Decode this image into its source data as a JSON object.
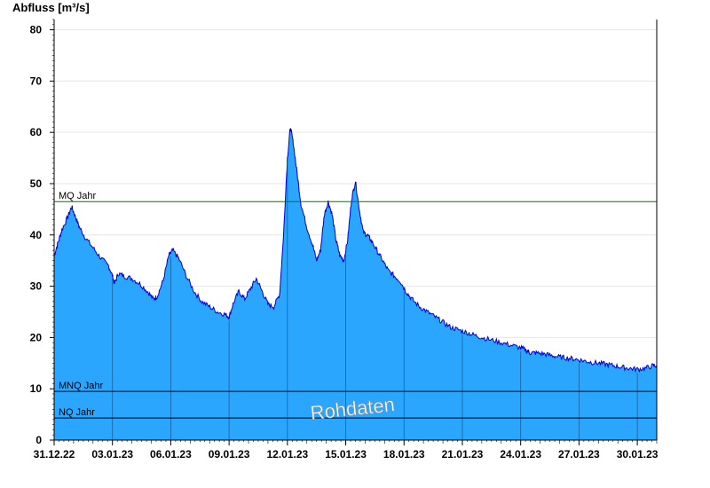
{
  "chart_data": {
    "type": "area",
    "ylabel": "Abfluss [m³/s]",
    "ylim": [
      0,
      82
    ],
    "yticks": [
      0,
      10,
      20,
      30,
      40,
      50,
      60,
      70,
      80
    ],
    "xlim": [
      0,
      31
    ],
    "xticks": [
      {
        "x": 0,
        "label": "31.12.22"
      },
      {
        "x": 3,
        "label": "03.01.23"
      },
      {
        "x": 6,
        "label": "06.01.23"
      },
      {
        "x": 9,
        "label": "09.01.23"
      },
      {
        "x": 12,
        "label": "12.01.23"
      },
      {
        "x": 15,
        "label": "15.01.23"
      },
      {
        "x": 18,
        "label": "18.01.23"
      },
      {
        "x": 21,
        "label": "21.01.23"
      },
      {
        "x": 24,
        "label": "24.01.23"
      },
      {
        "x": 27,
        "label": "27.01.23"
      },
      {
        "x": 30,
        "label": "30.01.23"
      }
    ],
    "series": [
      {
        "x": [
          0,
          0.2,
          0.4,
          0.7,
          0.9,
          1.1,
          1.3,
          1.6,
          2.0,
          2.4,
          2.8,
          3.0,
          3.1,
          3.3,
          3.6,
          4.0,
          4.4,
          4.8,
          5.1,
          5.3,
          5.6,
          5.9,
          6.1,
          6.4,
          6.8,
          7.2,
          7.6,
          8.0,
          8.4,
          8.8,
          9.0,
          9.2,
          9.5,
          9.8,
          10.1,
          10.4,
          10.7,
          11.0,
          11.3,
          11.6,
          11.8,
          12.0,
          12.15,
          12.3,
          12.5,
          12.7,
          13.0,
          13.3,
          13.5,
          13.7,
          13.9,
          14.1,
          14.3,
          14.5,
          14.7,
          14.9,
          15.1,
          15.3,
          15.5,
          15.7,
          15.9,
          16.1,
          16.3,
          16.6,
          16.9,
          17.2,
          17.5,
          17.8,
          18.1,
          18.4,
          18.8,
          19.2,
          19.6,
          20.0,
          20.4,
          20.8,
          21.2,
          21.6,
          22.0,
          22.5,
          23.0,
          23.5,
          24.0,
          24.3,
          24.5,
          24.8,
          25.2,
          25.6,
          26.0,
          26.4,
          26.8,
          27.2,
          27.6,
          28.0,
          28.4,
          28.8,
          29.2,
          29.6,
          30.0,
          30.4,
          30.8,
          31.0
        ],
        "values": [
          36.0,
          38.5,
          41.0,
          43.5,
          45.5,
          43.5,
          41.5,
          39.5,
          37.5,
          35.5,
          34.0,
          32.0,
          30.5,
          32.5,
          32.0,
          31.5,
          30.5,
          29.0,
          27.5,
          28.0,
          31.0,
          36.0,
          37.0,
          35.5,
          32.0,
          29.0,
          27.0,
          26.0,
          25.0,
          24.5,
          24.0,
          26.5,
          29.0,
          27.5,
          29.5,
          31.5,
          29.0,
          26.5,
          26.0,
          28.5,
          40.0,
          55.0,
          61.0,
          58.0,
          52.0,
          46.0,
          41.5,
          38.0,
          35.0,
          37.0,
          44.0,
          46.5,
          44.0,
          39.0,
          36.0,
          35.0,
          39.0,
          47.0,
          50.5,
          45.0,
          40.5,
          40.0,
          39.0,
          37.0,
          35.0,
          33.0,
          32.0,
          31.0,
          29.0,
          27.5,
          26.0,
          25.0,
          24.0,
          23.0,
          22.0,
          21.5,
          21.0,
          20.5,
          20.0,
          19.5,
          19.0,
          18.5,
          18.0,
          17.5,
          17.0,
          17.0,
          16.8,
          16.5,
          16.2,
          16.0,
          15.8,
          15.5,
          15.2,
          15.0,
          14.8,
          14.5,
          14.2,
          14.0,
          13.8,
          14.0,
          14.5,
          14.5
        ]
      }
    ],
    "reference_lines": [
      {
        "label": "MQ Jahr",
        "value": 46.5,
        "color": "#007a00"
      },
      {
        "label": "MNQ Jahr",
        "value": 9.5,
        "color": "#000000"
      },
      {
        "label": "NQ Jahr",
        "value": 4.3,
        "color": "#000000"
      }
    ],
    "fill_color": "#2aa6ff",
    "line_color": "#0000cc",
    "grid": true,
    "watermark": "Rohdaten"
  }
}
